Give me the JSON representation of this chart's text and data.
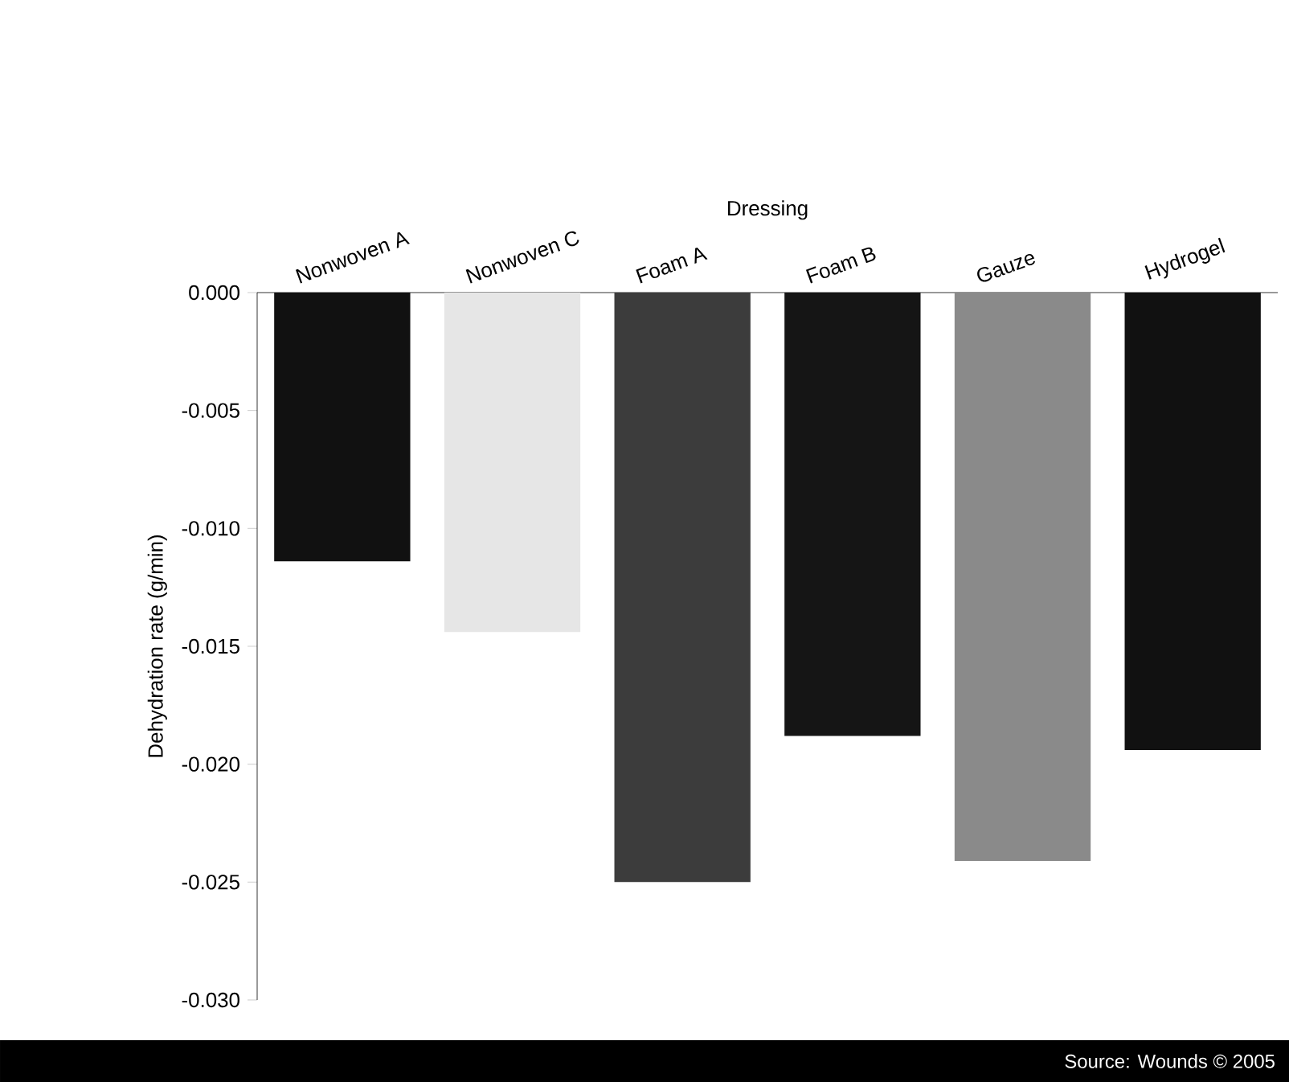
{
  "chart_data": {
    "type": "bar",
    "xlabel": "Dressing",
    "ylabel": "Dehydration rate (g/min)",
    "categories": [
      "Nonwoven A",
      "Nonwoven C",
      "Foam A",
      "Foam B",
      "Gauze",
      "Hydrogel"
    ],
    "values": [
      -0.0114,
      -0.0144,
      -0.025,
      -0.0188,
      -0.0241,
      -0.0194
    ],
    "colors": [
      "#111111",
      "#e6e6e6",
      "#3c3c3c",
      "#151515",
      "#8a8a8a",
      "#111111"
    ],
    "ylim": [
      -0.03,
      0
    ],
    "yticks": [
      {
        "value": 0,
        "label": "0.000"
      },
      {
        "value": -0.005,
        "label": "-0.005"
      },
      {
        "value": -0.01,
        "label": "-0.010"
      },
      {
        "value": -0.015,
        "label": "-0.015"
      },
      {
        "value": -0.02,
        "label": "-0.020"
      },
      {
        "value": -0.025,
        "label": "-0.025"
      },
      {
        "value": -0.03,
        "label": "-0.030"
      }
    ],
    "annotations": [
      "Source: Wounds © 2005"
    ]
  }
}
